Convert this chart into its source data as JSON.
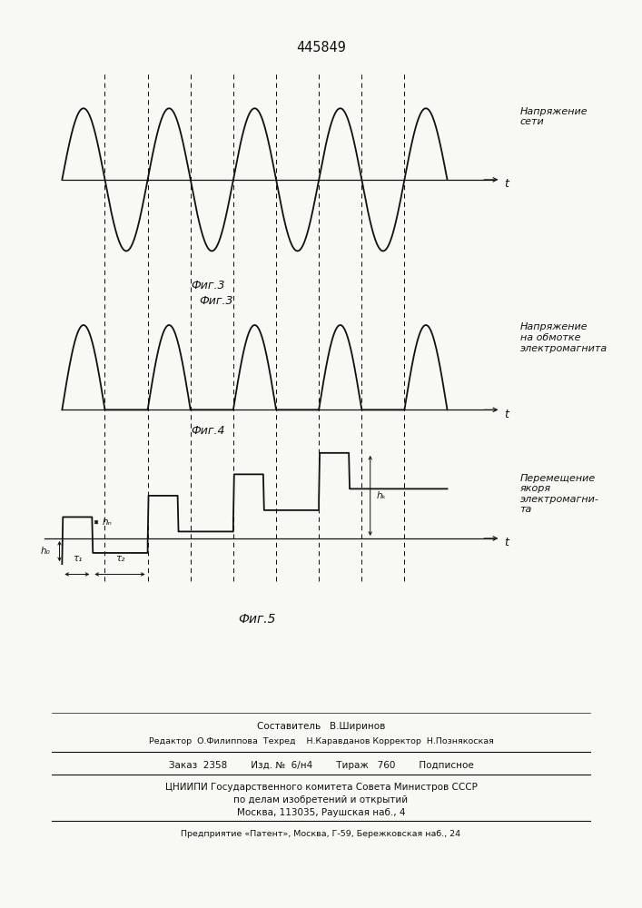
{
  "title": "445849",
  "fig3_label": "Фиг.3",
  "fig4_label": "Фиг.4",
  "fig5_label": "Фиг.5",
  "label_sine": "Напряжение\nсети",
  "label_coil": "Напряжение\nна обмотке\nэлектромагнита",
  "label_displacement": "Перемещение\nякоря\nэлектромагни-\nта",
  "t_label": "t",
  "t1_label": "τ₁",
  "t2_label": "τ₂",
  "h0_label": "h₀",
  "hn_label": "hₙ",
  "hk_label": "hₖ",
  "sestavitel": "Составитель   В.Ширинов",
  "redaktor": "Редактор  О.Филиппова  Техред    Н.Каравданов Корректор  Н.Познякоская",
  "zakaz": "Заказ  2358        Изд. №  6/н4        Тираж   760        Подписное",
  "cniipi": "ЦНИИПИ Государственного комитета Совета Министров СССР",
  "cniipi2": "по делам изобретений и открытий",
  "cniipi3": "Москва, 113035, Раушская наб., 4",
  "predpr": "Предприятие «Патент», Москва, Г-59, Бережковская наб., 24",
  "bg_color": "#f8f8f4",
  "line_color": "#111111"
}
